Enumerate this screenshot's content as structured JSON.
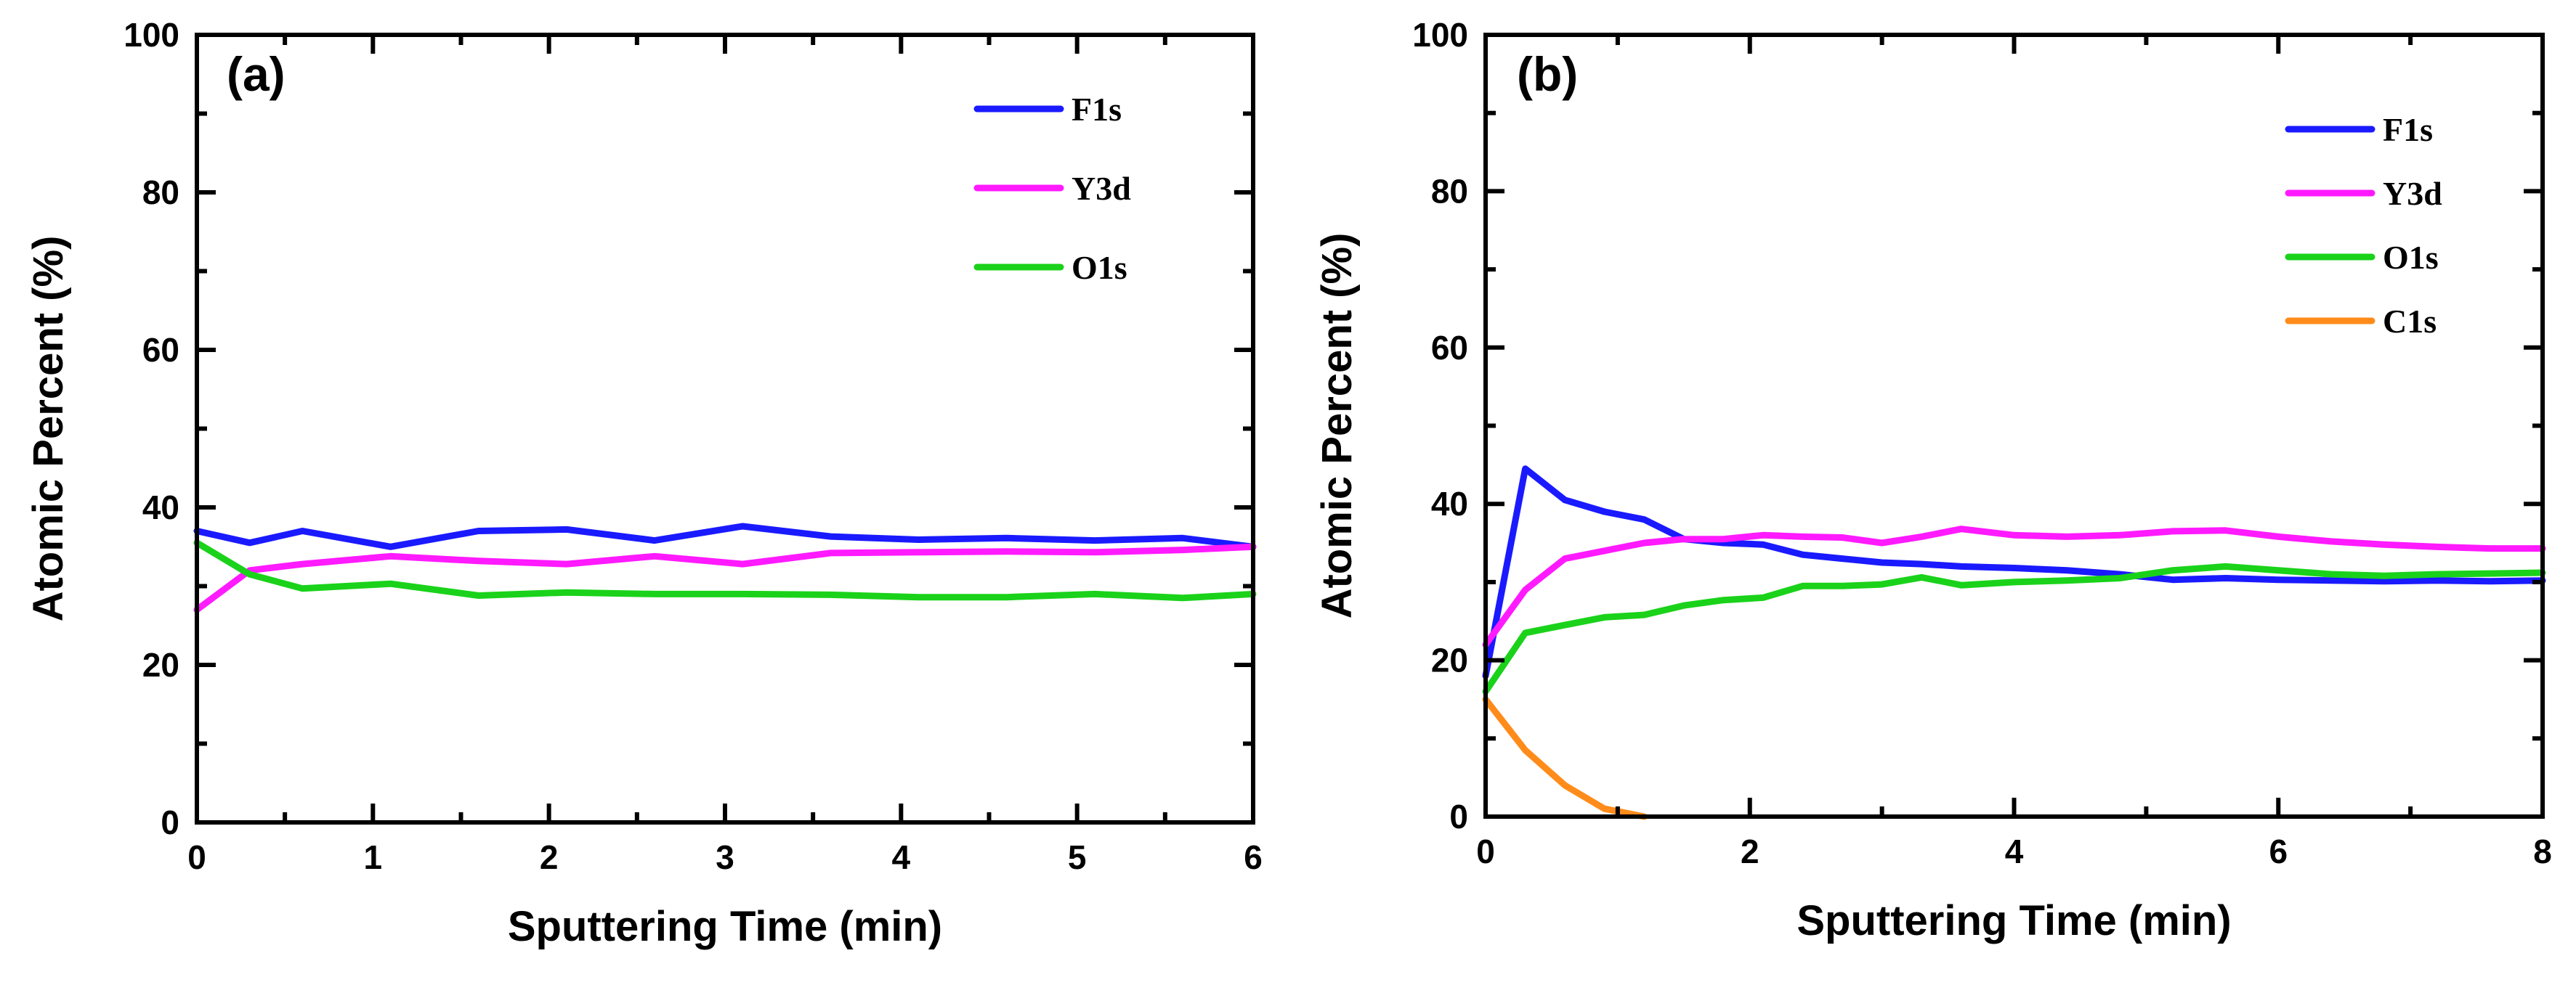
{
  "chart_data": [
    {
      "type": "line",
      "panel_label": "(a)",
      "xlabel": "Sputtering Time (min)",
      "ylabel": "Atomic Percent (%)",
      "xlim": [
        0,
        6
      ],
      "ylim": [
        0,
        100
      ],
      "xticks": [
        0,
        1,
        2,
        3,
        4,
        5,
        6
      ],
      "yticks": [
        0,
        20,
        40,
        60,
        80,
        100
      ],
      "legend_position": "top-right",
      "series": [
        {
          "name": "F1s",
          "color": "#1a1aff",
          "x": [
            0,
            0.3,
            0.6,
            1.1,
            1.6,
            2.1,
            2.6,
            3.1,
            3.6,
            4.1,
            4.6,
            5.1,
            5.6,
            6.0
          ],
          "y": [
            37,
            35.5,
            37,
            35,
            37,
            37.2,
            35.8,
            37.6,
            36.3,
            35.9,
            36.1,
            35.8,
            36.1,
            35
          ]
        },
        {
          "name": "Y3d",
          "color": "#ff1aff",
          "x": [
            0,
            0.3,
            0.6,
            1.1,
            1.6,
            2.1,
            2.6,
            3.1,
            3.6,
            4.1,
            4.6,
            5.1,
            5.6,
            6.0
          ],
          "y": [
            27,
            32,
            32.8,
            33.8,
            33.2,
            32.8,
            33.8,
            32.8,
            34.2,
            34.3,
            34.4,
            34.3,
            34.6,
            35
          ]
        },
        {
          "name": "O1s",
          "color": "#1ad21a",
          "x": [
            0,
            0.3,
            0.6,
            1.1,
            1.6,
            2.1,
            2.6,
            3.1,
            3.6,
            4.1,
            4.6,
            5.1,
            5.6,
            6.0
          ],
          "y": [
            35.5,
            31.5,
            29.7,
            30.3,
            28.8,
            29.2,
            29,
            29,
            28.9,
            28.6,
            28.6,
            29,
            28.5,
            29
          ]
        }
      ]
    },
    {
      "type": "line",
      "panel_label": "(b)",
      "xlabel": "Sputtering Time (min)",
      "ylabel": "Atomic Percent (%)",
      "xlim": [
        0,
        8
      ],
      "ylim": [
        0,
        100
      ],
      "xticks": [
        0,
        2,
        4,
        6,
        8
      ],
      "yticks": [
        0,
        20,
        40,
        60,
        80,
        100
      ],
      "legend_position": "top-right",
      "series": [
        {
          "name": "F1s",
          "color": "#1a1aff",
          "x": [
            0,
            0.3,
            0.6,
            0.9,
            1.2,
            1.5,
            1.8,
            2.1,
            2.4,
            2.7,
            3.0,
            3.3,
            3.6,
            4.0,
            4.4,
            4.8,
            5.2,
            5.6,
            6.0,
            6.4,
            6.8,
            7.2,
            7.6,
            8.0
          ],
          "y": [
            18,
            44.5,
            40.5,
            39,
            38,
            35.5,
            35,
            34.8,
            33.5,
            33,
            32.5,
            32.3,
            32,
            31.8,
            31.5,
            31,
            30.3,
            30.5,
            30.3,
            30.2,
            30.1,
            30.2,
            30.1,
            30.2
          ]
        },
        {
          "name": "Y3d",
          "color": "#ff1aff",
          "x": [
            0,
            0.3,
            0.6,
            0.9,
            1.2,
            1.5,
            1.8,
            2.1,
            2.4,
            2.7,
            3.0,
            3.3,
            3.6,
            4.0,
            4.4,
            4.8,
            5.2,
            5.6,
            6.0,
            6.4,
            6.8,
            7.2,
            7.6,
            8.0
          ],
          "y": [
            22,
            29,
            33,
            34,
            35,
            35.5,
            35.5,
            36,
            35.8,
            35.7,
            35,
            35.8,
            36.8,
            36,
            35.8,
            36,
            36.5,
            36.6,
            35.8,
            35.2,
            34.8,
            34.5,
            34.3,
            34.3
          ]
        },
        {
          "name": "O1s",
          "color": "#1ad21a",
          "x": [
            0,
            0.3,
            0.6,
            0.9,
            1.2,
            1.5,
            1.8,
            2.1,
            2.4,
            2.7,
            3.0,
            3.3,
            3.6,
            4.0,
            4.4,
            4.8,
            5.2,
            5.6,
            6.0,
            6.4,
            6.8,
            7.2,
            7.6,
            8.0
          ],
          "y": [
            16,
            23.5,
            24.5,
            25.5,
            25.8,
            27,
            27.7,
            28,
            29.5,
            29.5,
            29.7,
            30.6,
            29.6,
            30,
            30.2,
            30.5,
            31.5,
            32,
            31.5,
            31,
            30.8,
            31,
            31.1,
            31.2
          ]
        },
        {
          "name": "C1s",
          "color": "#ff8c1a",
          "x": [
            0,
            0.3,
            0.6,
            0.9,
            1.2
          ],
          "y": [
            15,
            8.5,
            4,
            1,
            0
          ]
        }
      ]
    }
  ]
}
